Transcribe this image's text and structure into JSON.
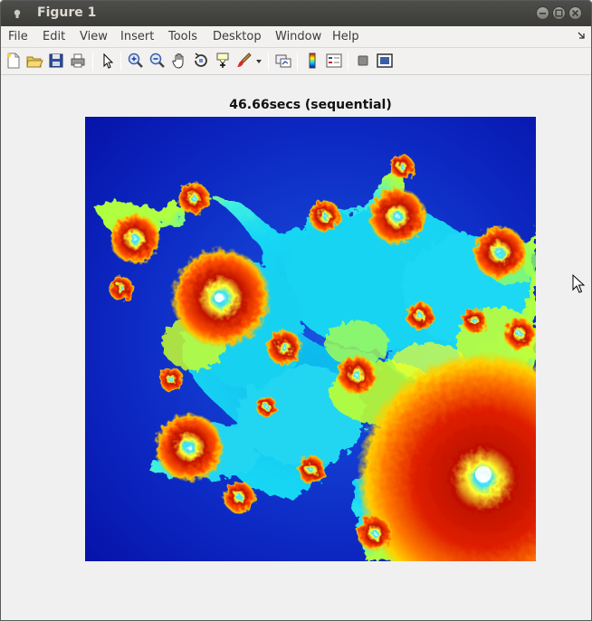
{
  "window": {
    "title": "Figure 1",
    "icon": "matlab-figure-icon"
  },
  "menu": [
    "File",
    "Edit",
    "View",
    "Insert",
    "Tools",
    "Desktop",
    "Window",
    "Help"
  ],
  "toolbar": [
    "new-figure-icon",
    "open-file-icon",
    "save-icon",
    "print-icon",
    "pointer-icon",
    "zoom-in-icon",
    "zoom-out-icon",
    "pan-hand-icon",
    "rotate-3d-icon",
    "data-cursor-icon",
    "brush-icon",
    "brush-dropdown-icon",
    "link-plot-icon",
    "colorbar-icon",
    "legend-icon",
    "hide-plot-tools-icon",
    "show-plot-tools-icon"
  ],
  "figure": {
    "title": "46.66secs (sequential)"
  },
  "colors": {
    "titlebar": "#3c3b37",
    "background": "#f0f0f0",
    "fractal_low": "#0a18b8",
    "fractal_mid": "#19e0f0",
    "fractal_high": "#ff2a00"
  }
}
